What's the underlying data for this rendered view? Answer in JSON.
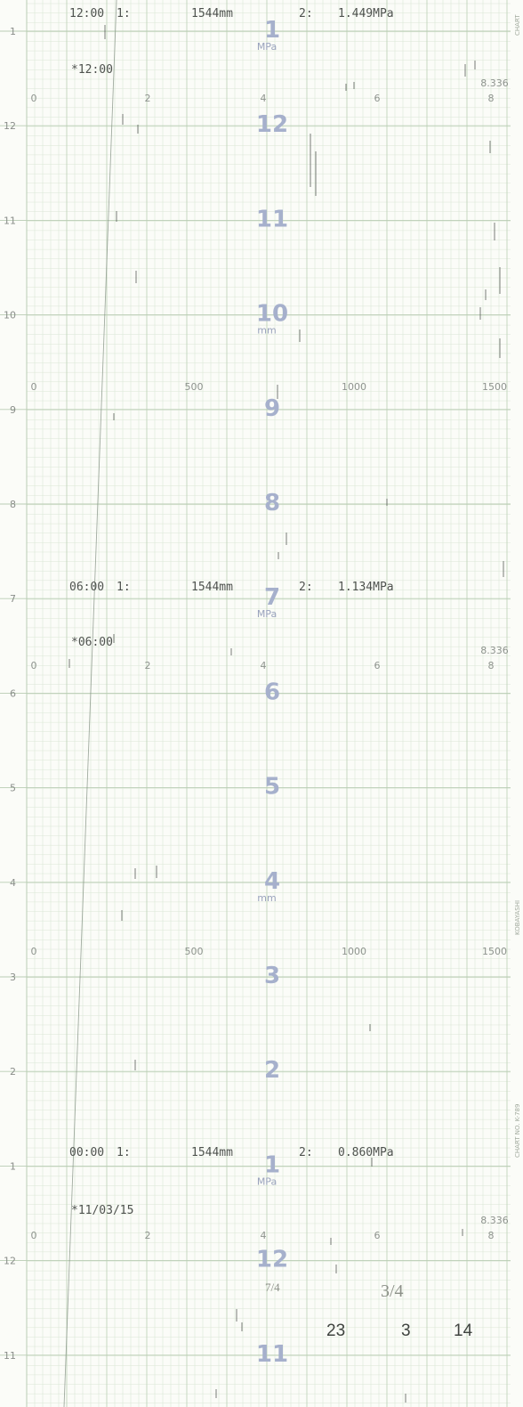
{
  "chart_data": {
    "type": "strip chart",
    "palette": {
      "paper": "#fbfcf8",
      "grid_major": "#b9cdb3",
      "grid_minor": "#dbe6d6",
      "hour_label": "#a6b0cc",
      "pen_trace": "#7c8a7c",
      "print": "#4e524e"
    },
    "hour_labels": [
      "1",
      "12",
      "11",
      "10",
      "9",
      "8",
      "7",
      "6",
      "5",
      "4",
      "3",
      "2",
      "1",
      "12",
      "11"
    ],
    "left_hour_ticks": [
      "1",
      "12",
      "11",
      "10",
      "9",
      "8",
      "7",
      "6",
      "5",
      "4",
      "3",
      "2",
      "1",
      "12",
      "11"
    ],
    "unit_labels": [
      {
        "text": "MPa",
        "after_hour": 0
      },
      {
        "text": "mm",
        "after_hour": 3
      },
      {
        "text": "MPa",
        "after_hour": 6
      },
      {
        "text": "mm",
        "after_hour": 9
      },
      {
        "text": "MPa",
        "after_hour": 12
      }
    ],
    "pressure_scale": [
      "0",
      "2",
      "4",
      "6",
      "8"
    ],
    "pressure_max": "8.336",
    "level_scale": [
      "0",
      "500",
      "1000",
      "1500"
    ],
    "records": [
      {
        "time": "12:00",
        "ch1_label": "1:",
        "ch1_value": "1544mm",
        "ch2_label": "2:",
        "ch2_value": "1.449MPa",
        "stamp": "*12:00"
      },
      {
        "time": "06:00",
        "ch1_label": "1:",
        "ch1_value": "1544mm",
        "ch2_label": "2:",
        "ch2_value": "1.134MPa",
        "stamp": "*06:00"
      },
      {
        "time": "00:00",
        "ch1_label": "1:",
        "ch1_value": "1544mm",
        "ch2_label": "2:",
        "ch2_value": "0.860MPa",
        "stamp": "*11/03/15"
      }
    ],
    "brand_text": [
      "CHART",
      "KOBAYASHI",
      "CHART NO. K-789"
    ],
    "handwriting": {
      "note_a": "7/4",
      "note_b": "3/4",
      "numbers": [
        "23",
        "3",
        "14"
      ]
    }
  }
}
